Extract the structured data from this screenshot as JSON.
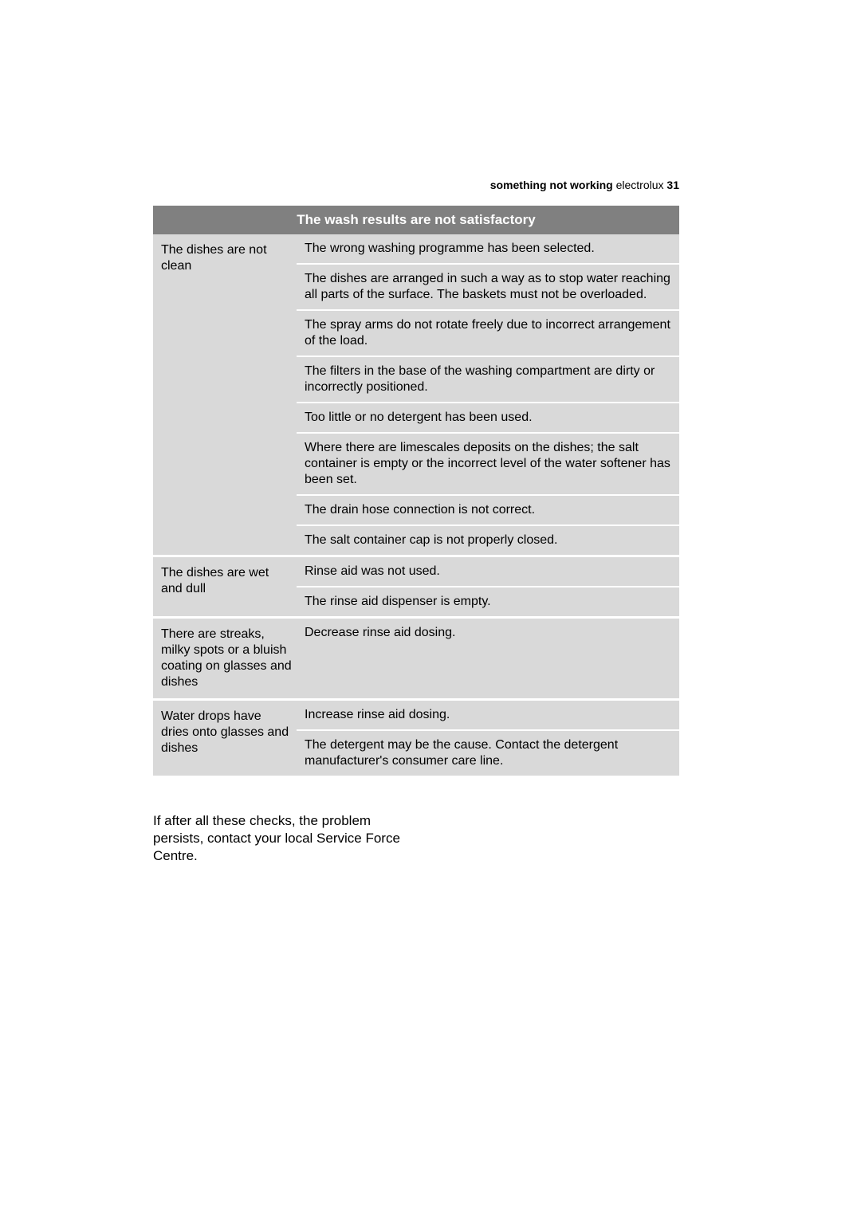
{
  "header": {
    "section": "something not working",
    "brand": " electrolux",
    "page_num": "  31"
  },
  "table": {
    "title": "The wash results are not satisfactory",
    "rows": [
      {
        "problem": "The dishes are not clean",
        "causes": [
          "The wrong washing programme has been selected.",
          "The dishes are arranged in such a way as to stop water reaching all parts of the surface. The baskets must not be overloaded.",
          "The spray arms do not rotate freely due to incorrect arrangement of the load.",
          "The filters in the base of the washing compartment are dirty or incorrectly positioned.",
          "Too little or no detergent has been used.",
          "Where there are limescales deposits on the dishes; the salt container is empty or the incorrect level of the water softener has been set.",
          "The drain hose connection is not correct.",
          "The salt container cap is not properly closed."
        ]
      },
      {
        "problem": "The dishes are wet and dull",
        "causes": [
          "Rinse aid was not used.",
          "The rinse aid dispenser is empty."
        ]
      },
      {
        "problem": "There are streaks, milky spots or a bluish coating on glasses and dishes",
        "causes": [
          "Decrease rinse aid dosing."
        ]
      },
      {
        "problem": "Water drops have dries onto glasses and dishes",
        "causes": [
          "Increase rinse aid dosing.",
          "The detergent may be the cause. Contact the detergent manufacturer's consumer care line."
        ]
      }
    ]
  },
  "footnote": "If after all these checks, the problem persists, contact your local Service Force Centre.",
  "colors": {
    "header_bg": "#808080",
    "header_text": "#ffffff",
    "row_bg": "#d9d9d9",
    "divider": "#ffffff",
    "text": "#000000",
    "page_bg": "#ffffff"
  },
  "typography": {
    "body_font": "Arial",
    "body_size_pt": 12,
    "header_size_pt": 13,
    "running_head_size_pt": 10
  }
}
